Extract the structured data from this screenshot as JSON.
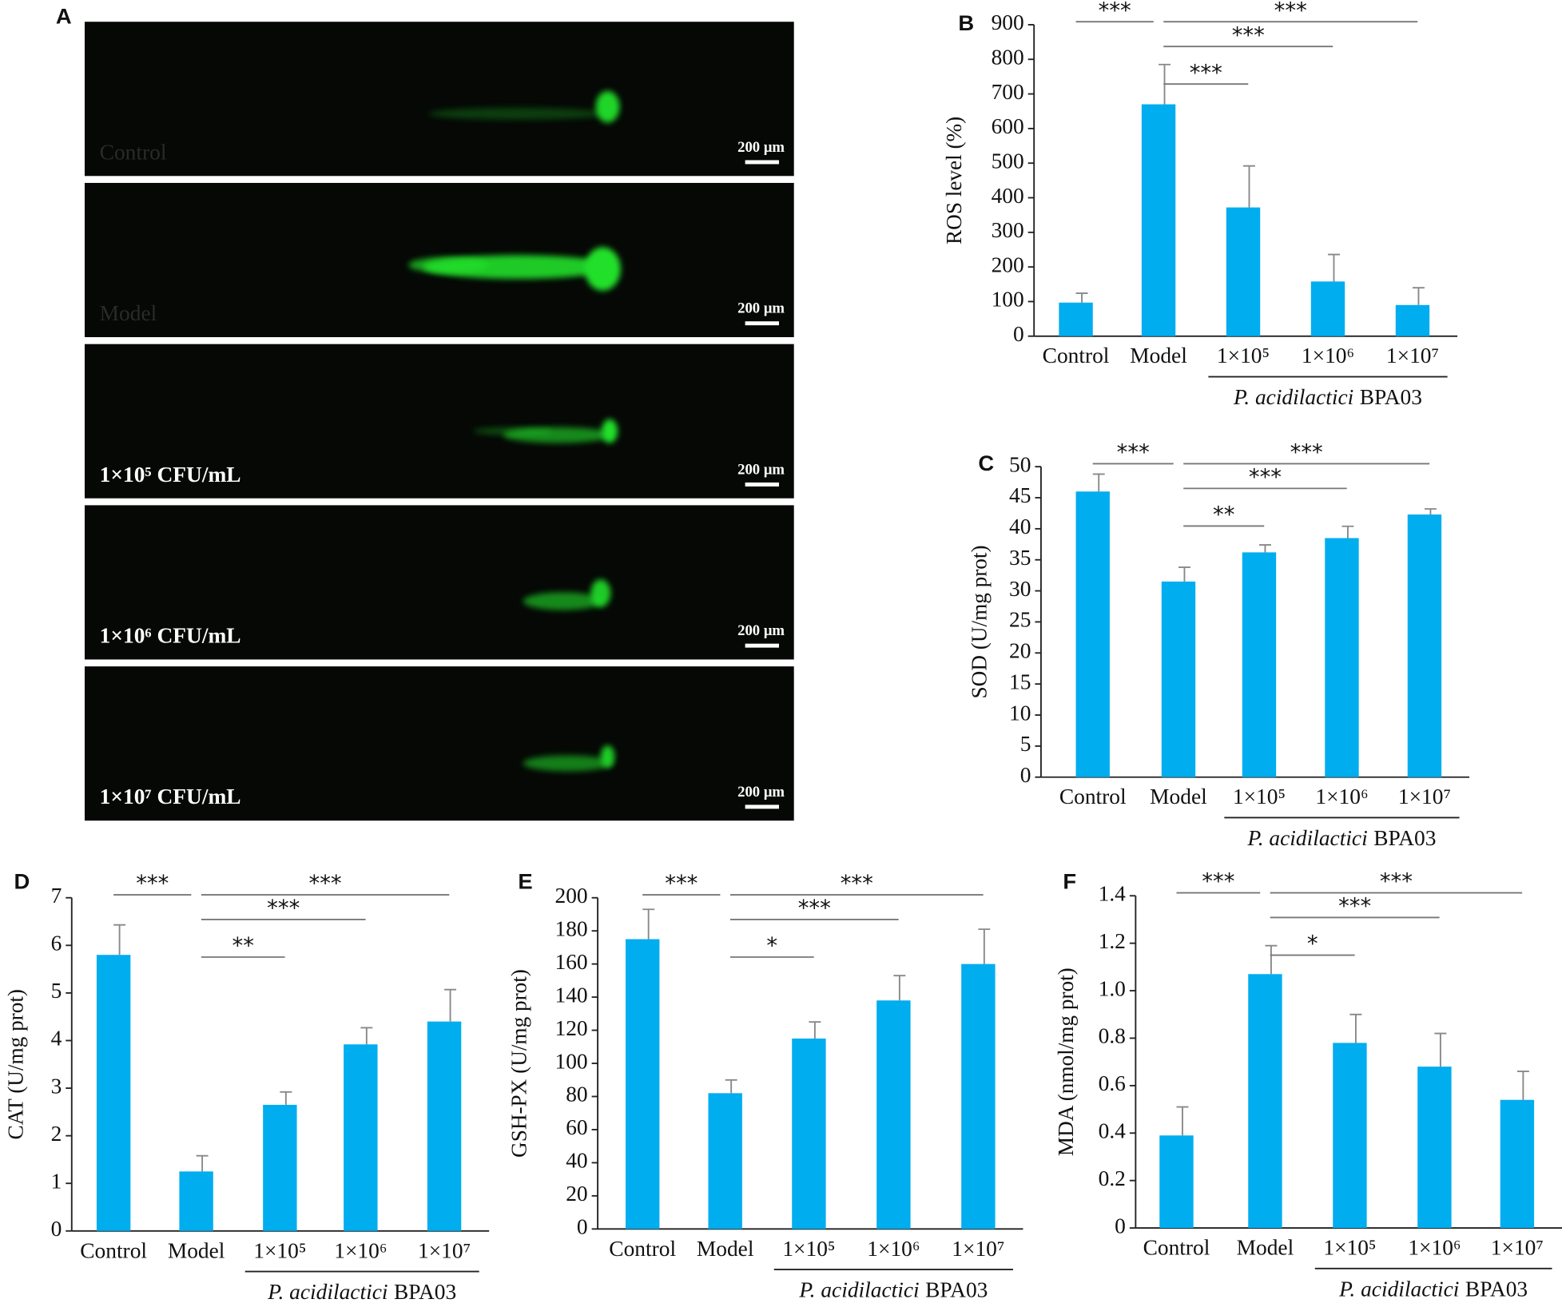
{
  "panel_a": {
    "label": "A",
    "images": [
      {
        "label": "Control",
        "scale_bar": "200 μm"
      },
      {
        "label": "Model",
        "scale_bar": "200 μm"
      },
      {
        "label": "1×10⁵ CFU/mL",
        "scale_bar": "200 μm"
      },
      {
        "label": "1×10⁶ CFU/mL",
        "scale_bar": "200 μm"
      },
      {
        "label": "1×10⁷ CFU/mL",
        "scale_bar": "200 μm"
      }
    ]
  },
  "chart_data": [
    {
      "type": "bar",
      "panel_label": "B",
      "y_label": "ROS level (%)",
      "categories": [
        "Control",
        "Model",
        "1×10⁵",
        "1×10⁶",
        "1×10⁷"
      ],
      "values": [
        97,
        670,
        372,
        158,
        90
      ],
      "errors": [
        27,
        115,
        120,
        78,
        50
      ],
      "color": "#00adef",
      "ylim": [
        0,
        900
      ],
      "yticks": [
        0,
        100,
        200,
        300,
        400,
        500,
        600,
        700,
        800,
        900
      ],
      "group_label": {
        "species": "P. acidilactici",
        "strain": "BPA03"
      },
      "annotations": [
        {
          "text": "***",
          "from": "Control",
          "to": "Model"
        },
        {
          "text": "***",
          "from": "Model",
          "to": "1×10⁵"
        },
        {
          "text": "***",
          "from": "Model",
          "to": "1×10⁶"
        },
        {
          "text": "***",
          "from": "Model",
          "to": "1×10⁷"
        }
      ]
    },
    {
      "type": "bar",
      "panel_label": "C",
      "y_label": "SOD (U/mg prot)",
      "categories": [
        "Control",
        "Model",
        "1×10⁵",
        "1×10⁶",
        "1×10⁷"
      ],
      "values": [
        46,
        31.5,
        36.2,
        38.5,
        42.3
      ],
      "errors": [
        2.8,
        2.3,
        1.2,
        1.9,
        0.9
      ],
      "color": "#00adef",
      "ylim": [
        0,
        50
      ],
      "yticks": [
        0,
        5,
        10,
        15,
        20,
        25,
        30,
        35,
        40,
        45,
        50
      ],
      "group_label": {
        "species": "P. acidilactici",
        "strain": "BPA03"
      },
      "annotations": [
        {
          "text": "***",
          "from": "Control",
          "to": "Model"
        },
        {
          "text": "**",
          "from": "Model",
          "to": "1×10⁵"
        },
        {
          "text": "***",
          "from": "Model",
          "to": "1×10⁶"
        },
        {
          "text": "***",
          "from": "Model",
          "to": "1×10⁷"
        }
      ]
    },
    {
      "type": "bar",
      "panel_label": "D",
      "y_label": "CAT (U/mg prot)",
      "categories": [
        "Control",
        "Model",
        "1×10⁵",
        "1×10⁶",
        "1×10⁷"
      ],
      "values": [
        5.8,
        1.25,
        2.65,
        3.92,
        4.4
      ],
      "errors": [
        0.63,
        0.33,
        0.27,
        0.35,
        0.67
      ],
      "color": "#00adef",
      "ylim": [
        0,
        7
      ],
      "yticks": [
        0,
        1,
        2,
        3,
        4,
        5,
        6,
        7
      ],
      "group_label": {
        "species": "P. acidilactici",
        "strain": "BPA03"
      },
      "annotations": [
        {
          "text": "***",
          "from": "Control",
          "to": "Model"
        },
        {
          "text": "**",
          "from": "Model",
          "to": "1×10⁵"
        },
        {
          "text": "***",
          "from": "Model",
          "to": "1×10⁶"
        },
        {
          "text": "***",
          "from": "Model",
          "to": "1×10⁷"
        }
      ]
    },
    {
      "type": "bar",
      "panel_label": "E",
      "y_label": "GSH-PX (U/mg prot)",
      "categories": [
        "Control",
        "Model",
        "1×10⁵",
        "1×10⁶",
        "1×10⁷"
      ],
      "values": [
        175,
        82,
        115,
        138,
        160
      ],
      "errors": [
        18,
        8,
        10,
        15,
        21
      ],
      "color": "#00adef",
      "ylim": [
        0,
        200
      ],
      "yticks": [
        0,
        20,
        40,
        60,
        80,
        100,
        120,
        140,
        160,
        180,
        200
      ],
      "group_label": {
        "species": "P. acidilactici",
        "strain": "BPA03"
      },
      "annotations": [
        {
          "text": "***",
          "from": "Control",
          "to": "Model"
        },
        {
          "text": "*",
          "from": "Model",
          "to": "1×10⁵"
        },
        {
          "text": "***",
          "from": "Model",
          "to": "1×10⁶"
        },
        {
          "text": "***",
          "from": "Model",
          "to": "1×10⁷"
        }
      ]
    },
    {
      "type": "bar",
      "panel_label": "F",
      "y_label": "MDA (nmol/mg prot)",
      "categories": [
        "Control",
        "Model",
        "1×10⁵",
        "1×10⁶",
        "1×10⁷"
      ],
      "values": [
        0.39,
        1.07,
        0.78,
        0.68,
        0.54
      ],
      "errors": [
        0.12,
        0.12,
        0.12,
        0.14,
        0.12
      ],
      "color": "#00adef",
      "ylim": [
        0,
        1.4
      ],
      "yticks": [
        0,
        0.2,
        0.4,
        0.6,
        0.8,
        {
          "value": 1,
          "label": "1.0"
        },
        1.2,
        1.4
      ],
      "group_label": {
        "species": "P. acidilactici",
        "strain": "BPA03"
      },
      "annotations": [
        {
          "text": "***",
          "from": "Control",
          "to": "Model"
        },
        {
          "text": "*",
          "from": "Model",
          "to": "1×10⁵"
        },
        {
          "text": "***",
          "from": "Model",
          "to": "1×10⁶"
        },
        {
          "text": "***",
          "from": "Model",
          "to": "1×10⁷"
        }
      ]
    }
  ]
}
